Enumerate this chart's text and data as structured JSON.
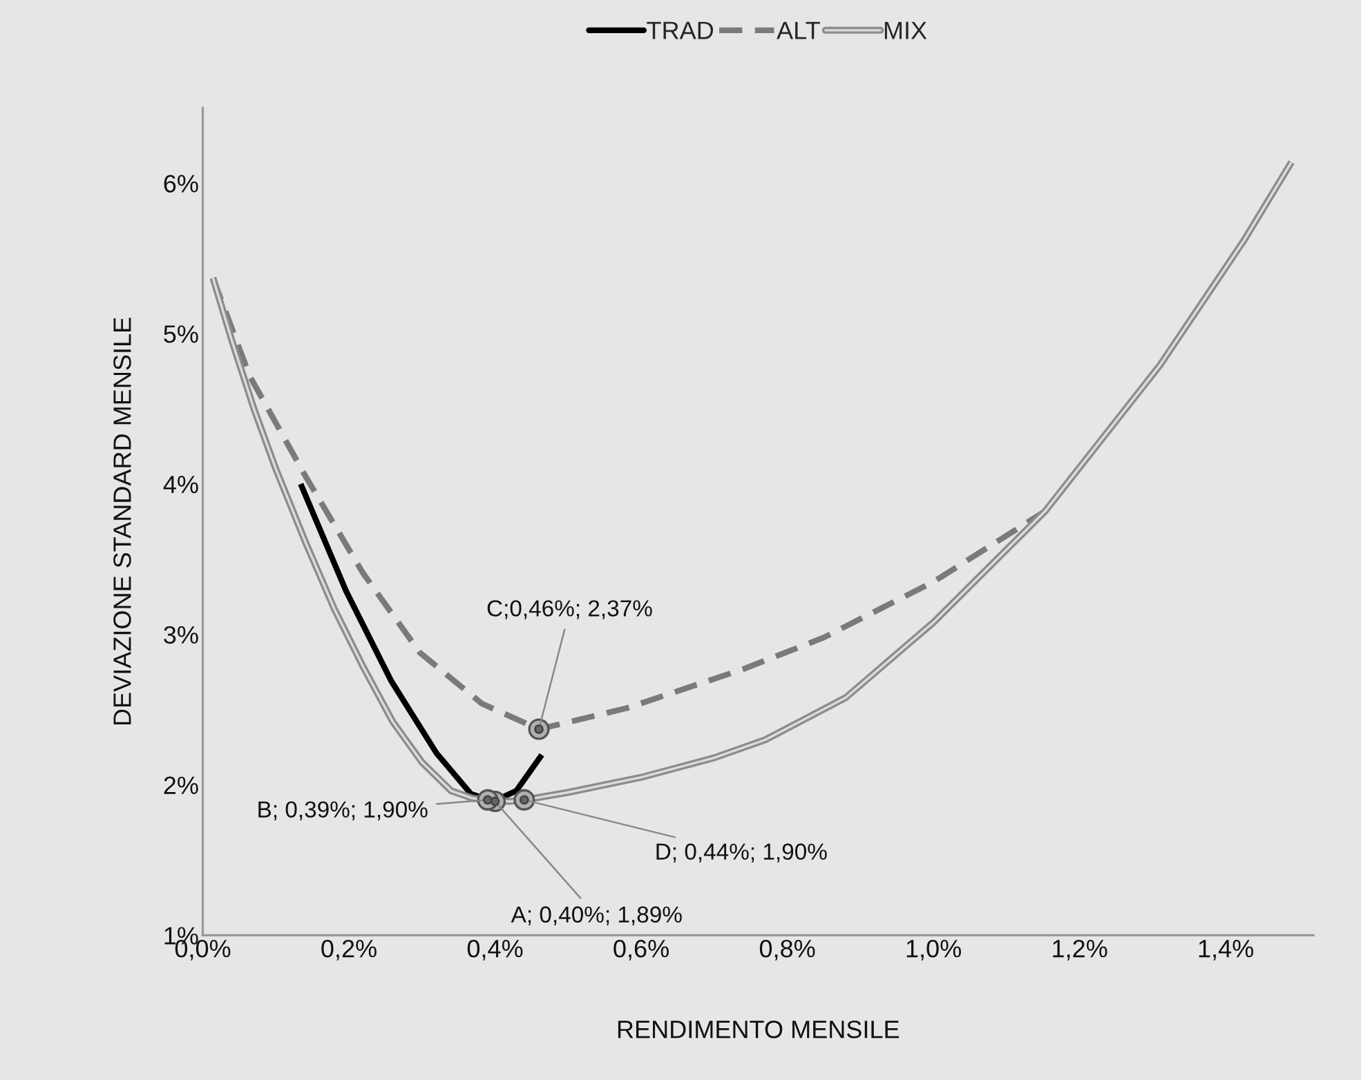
{
  "chart_data": {
    "type": "line",
    "xlabel": "RENDIMENTO MENSILE",
    "ylabel": "DEVIAZIONE STANDARD MENSILE",
    "xlim": [
      0,
      1.52
    ],
    "ylim": [
      1,
      6.5
    ],
    "xticks": [
      {
        "value": 0,
        "label": "0,0%"
      },
      {
        "value": 0.2,
        "label": "0,2%"
      },
      {
        "value": 0.4,
        "label": "0,4%"
      },
      {
        "value": 0.6,
        "label": "0,6%"
      },
      {
        "value": 0.8,
        "label": "0,8%"
      },
      {
        "value": 1.0,
        "label": "1,0%"
      },
      {
        "value": 1.2,
        "label": "1,2%"
      },
      {
        "value": 1.4,
        "label": "1,4%"
      }
    ],
    "yticks": [
      {
        "value": 1,
        "label": "1%"
      },
      {
        "value": 2,
        "label": "2%"
      },
      {
        "value": 3,
        "label": "3%"
      },
      {
        "value": 4,
        "label": "4%"
      },
      {
        "value": 5,
        "label": "5%"
      },
      {
        "value": 6,
        "label": "6%"
      }
    ],
    "grid": false,
    "legend": "top",
    "marker": "none",
    "series": [
      {
        "name": "TRAD",
        "color": "#000000",
        "line_style": "solid",
        "x": [
          0.134,
          0.196,
          0.258,
          0.32,
          0.367,
          0.398,
          0.429,
          0.464
        ],
        "values": [
          4.0,
          3.29,
          2.69,
          2.21,
          1.94,
          1.89,
          1.96,
          2.2
        ]
      },
      {
        "name": "ALT",
        "color": "#7a7a7a",
        "line_style": "dashed",
        "x": [
          0.014,
          0.064,
          0.142,
          0.219,
          0.297,
          0.382,
          0.46,
          0.58,
          0.74,
          0.85,
          1.0,
          1.153,
          1.31,
          1.425,
          1.49
        ],
        "values": [
          5.37,
          4.72,
          4.04,
          3.41,
          2.88,
          2.54,
          2.37,
          2.51,
          2.77,
          2.98,
          3.35,
          3.82,
          4.79,
          5.62,
          6.14
        ]
      },
      {
        "name": "MIX",
        "color": "#8c8c8c",
        "line_style": "solid",
        "x": [
          0.014,
          0.04,
          0.07,
          0.1,
          0.14,
          0.18,
          0.22,
          0.26,
          0.3,
          0.34,
          0.37,
          0.39,
          0.42,
          0.44,
          0.5,
          0.6,
          0.7,
          0.77,
          0.88,
          1.0,
          1.153,
          1.31,
          1.425,
          1.49
        ],
        "values": [
          5.37,
          4.95,
          4.5,
          4.1,
          3.62,
          3.17,
          2.78,
          2.42,
          2.15,
          1.96,
          1.91,
          1.9,
          1.89,
          1.9,
          1.95,
          2.05,
          2.18,
          2.3,
          2.58,
          3.08,
          3.82,
          4.79,
          5.62,
          6.14
        ]
      }
    ],
    "annotations": [
      {
        "text": "A; 0,40%; 1,89%",
        "x": 0.4,
        "y": 1.89
      },
      {
        "text": "B; 0,39%; 1,90%",
        "x": 0.39,
        "y": 1.9
      },
      {
        "text": "C;0,46%; 2,37%",
        "x": 0.46,
        "y": 2.37
      },
      {
        "text": "D; 0,44%; 1,90%",
        "x": 0.44,
        "y": 1.9
      }
    ]
  }
}
